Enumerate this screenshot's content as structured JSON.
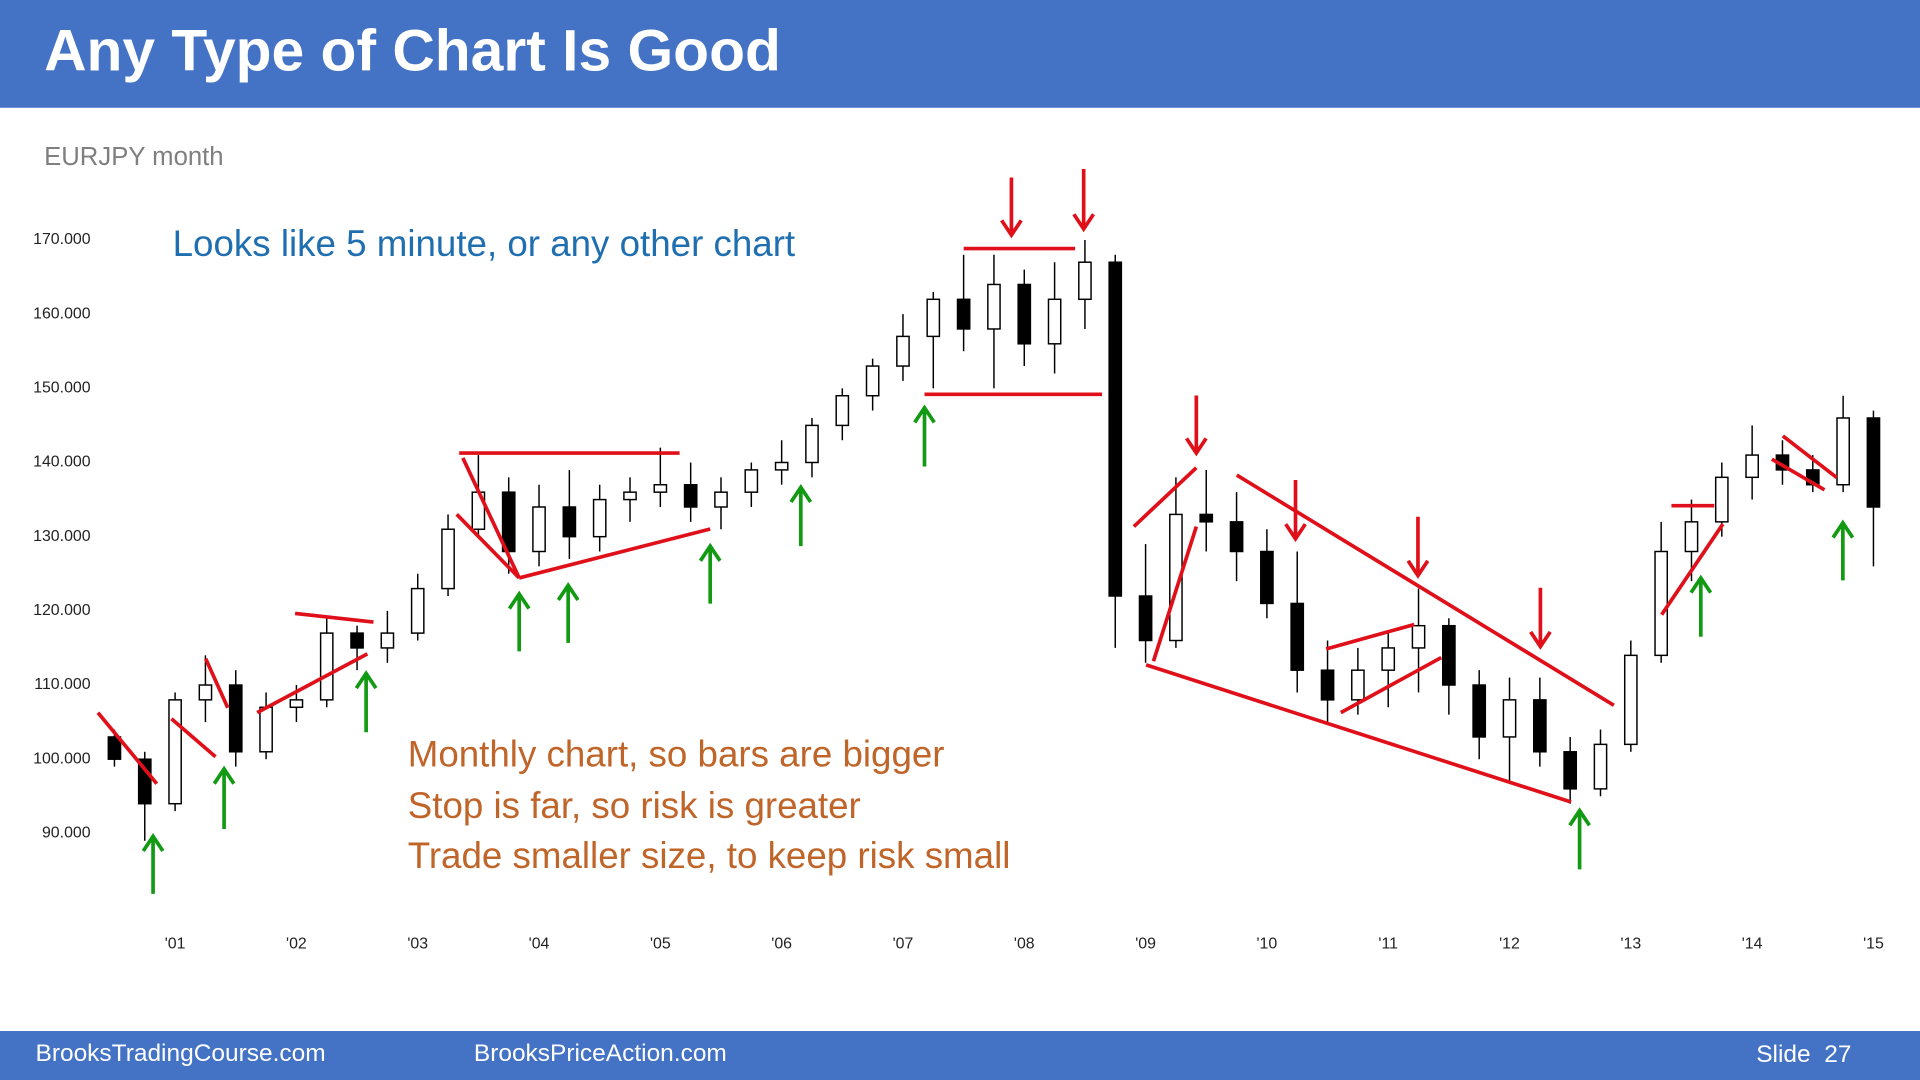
{
  "header": {
    "title": "Any Type of Chart Is Good"
  },
  "chart_data": {
    "type": "candlestick",
    "subtitle": "EURJPY month",
    "annotations": [
      "Looks like 5 minute, or any other chart",
      "Monthly chart, so bars are bigger",
      "Stop is far, so risk is greater",
      "Trade smaller size, to keep risk small"
    ],
    "xlim": [
      2000.35,
      2015.2
    ],
    "xticks": [
      {
        "value": 2001,
        "label": "'01"
      },
      {
        "value": 2002,
        "label": "'02"
      },
      {
        "value": 2003,
        "label": "'03"
      },
      {
        "value": 2004,
        "label": "'04"
      },
      {
        "value": 2005,
        "label": "'05"
      },
      {
        "value": 2006,
        "label": "'06"
      },
      {
        "value": 2007,
        "label": "'07"
      },
      {
        "value": 2008,
        "label": "'08"
      },
      {
        "value": 2009,
        "label": "'09"
      },
      {
        "value": 2010,
        "label": "'10"
      },
      {
        "value": 2011,
        "label": "'11"
      },
      {
        "value": 2012,
        "label": "'12"
      },
      {
        "value": 2013,
        "label": "'13"
      },
      {
        "value": 2014,
        "label": "'14"
      },
      {
        "value": 2015,
        "label": "'15"
      }
    ],
    "ylim": [
      83,
      178
    ],
    "yticks": [
      {
        "value": 90,
        "label": "90.000"
      },
      {
        "value": 100,
        "label": "100.000"
      },
      {
        "value": 110,
        "label": "110.000"
      },
      {
        "value": 120,
        "label": "120.000"
      },
      {
        "value": 130,
        "label": "130.000"
      },
      {
        "value": 140,
        "label": "140.000"
      },
      {
        "value": 150,
        "label": "150.000"
      },
      {
        "value": 160,
        "label": "160.000"
      },
      {
        "value": 170,
        "label": "170.000"
      }
    ],
    "x": [
      2000.5,
      2000.75,
      2001,
      2001.25,
      2001.5,
      2001.75,
      2002,
      2002.25,
      2002.5,
      2002.75,
      2003,
      2003.25,
      2003.5,
      2003.75,
      2004,
      2004.25,
      2004.5,
      2004.75,
      2005,
      2005.25,
      2005.5,
      2005.75,
      2006,
      2006.25,
      2006.5,
      2006.75,
      2007,
      2007.25,
      2007.5,
      2007.75,
      2008,
      2008.25,
      2008.5,
      2008.75,
      2009,
      2009.25,
      2009.5,
      2009.75,
      2010,
      2010.25,
      2010.5,
      2010.75,
      2011,
      2011.25,
      2011.5,
      2011.75,
      2012,
      2012.25,
      2012.5,
      2012.75,
      2013,
      2013.25,
      2013.5,
      2013.75,
      2014,
      2014.25,
      2014.5,
      2014.75,
      2015
    ],
    "open": [
      103,
      100,
      94,
      108,
      110,
      101,
      107,
      108,
      117,
      115,
      117,
      123,
      131,
      136,
      128,
      134,
      130,
      135,
      136,
      137,
      134,
      136,
      139,
      140,
      145,
      149,
      153,
      157,
      162,
      158,
      164,
      156,
      162,
      167,
      122,
      116,
      133,
      132,
      128,
      121,
      112,
      108,
      112,
      115,
      118,
      110,
      103,
      108,
      101,
      96,
      102,
      114,
      128,
      132,
      138,
      141,
      139,
      137,
      146
    ],
    "high": [
      104,
      101,
      109,
      114,
      112,
      109,
      110,
      119,
      118,
      120,
      125,
      133,
      141,
      138,
      137,
      139,
      137,
      138,
      142,
      140,
      138,
      140,
      143,
      146,
      150,
      154,
      160,
      163,
      168,
      168,
      166,
      167,
      170,
      168,
      129,
      138,
      139,
      136,
      131,
      128,
      116,
      115,
      117,
      123,
      119,
      112,
      111,
      111,
      103,
      104,
      116,
      132,
      135,
      140,
      145,
      143,
      141,
      149,
      147
    ],
    "low": [
      99,
      89,
      93,
      105,
      99,
      100,
      105,
      107,
      112,
      113,
      116,
      122,
      130,
      125,
      126,
      127,
      128,
      132,
      134,
      132,
      131,
      134,
      137,
      138,
      143,
      147,
      151,
      150,
      155,
      150,
      153,
      152,
      158,
      115,
      113,
      115,
      128,
      124,
      119,
      109,
      105,
      106,
      107,
      109,
      106,
      100,
      97,
      99,
      94,
      95,
      101,
      113,
      124,
      130,
      135,
      137,
      136,
      136,
      126
    ],
    "close": [
      100,
      94,
      108,
      110,
      101,
      107,
      108,
      117,
      115,
      117,
      123,
      131,
      136,
      128,
      134,
      130,
      135,
      136,
      137,
      134,
      136,
      139,
      140,
      145,
      149,
      153,
      157,
      162,
      158,
      164,
      156,
      162,
      167,
      122,
      116,
      133,
      132,
      128,
      121,
      112,
      108,
      112,
      115,
      118,
      110,
      103,
      108,
      101,
      96,
      102,
      114,
      128,
      132,
      138,
      141,
      139,
      137,
      146,
      134
    ]
  },
  "footer": {
    "left": "BrooksTradingCourse.com",
    "center": "BrooksPriceAction.com",
    "slide": "Slide  27"
  }
}
